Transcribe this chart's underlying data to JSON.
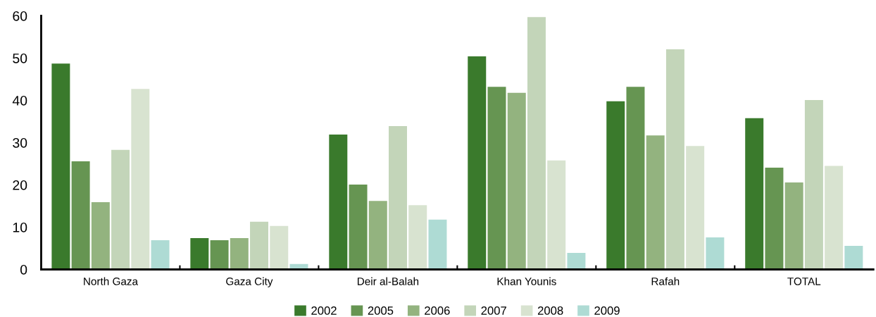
{
  "chart_data": {
    "type": "bar",
    "categories": [
      "North Gaza",
      "Gaza City",
      "Deir al-Balah",
      "Khan Younis",
      "Rafah",
      "TOTAL"
    ],
    "series": [
      {
        "name": "2002",
        "color": "#3a7a2c",
        "values": [
          48.7,
          7.4,
          31.9,
          50.4,
          39.8,
          35.8
        ]
      },
      {
        "name": "2005",
        "color": "#669552",
        "values": [
          25.6,
          6.9,
          20.1,
          43.2,
          43.2,
          24.1
        ]
      },
      {
        "name": "2006",
        "color": "#93b37f",
        "values": [
          15.9,
          7.4,
          16.2,
          41.8,
          31.7,
          20.6
        ]
      },
      {
        "name": "2007",
        "color": "#c3d5b9",
        "values": [
          28.3,
          11.3,
          33.9,
          59.7,
          52.1,
          40.1
        ]
      },
      {
        "name": "2008",
        "color": "#d8e3d0",
        "values": [
          42.7,
          10.3,
          15.2,
          25.8,
          29.2,
          24.5
        ]
      },
      {
        "name": "2009",
        "color": "#aedbd4",
        "values": [
          6.9,
          1.3,
          11.8,
          3.9,
          7.6,
          5.6
        ]
      }
    ],
    "ylim": [
      0,
      60
    ],
    "yticks": [
      0,
      10,
      20,
      30,
      40,
      50,
      60
    ],
    "grid": false,
    "legend": "bottom"
  }
}
